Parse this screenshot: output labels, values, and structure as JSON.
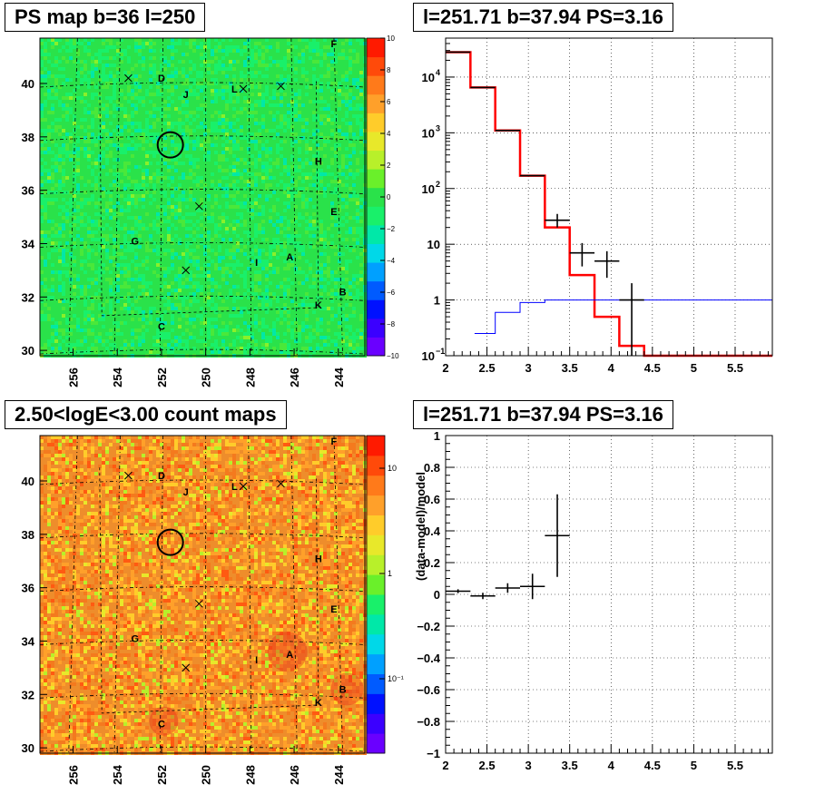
{
  "titles": {
    "map_top": "PS map b=36 l=250",
    "spec_top": "l=251.71 b=37.94 PS=3.16",
    "map_bottom": "2.50<logE<3.00 count maps",
    "spec_bottom": "l=251.71 b=37.94 PS=3.16"
  },
  "chart_data": [
    {
      "type": "heatmap",
      "title": "PS map b=36 l=250",
      "x_ticks": [
        "256",
        "254",
        "252",
        "250",
        "248",
        "246",
        "244"
      ],
      "y_ticks": [
        "30",
        "32",
        "34",
        "36",
        "38",
        "40"
      ],
      "xlim": [
        257.5,
        242.8
      ],
      "ylim": [
        29.8,
        41.7
      ],
      "colorbar": {
        "ticks": [
          "10",
          "8",
          "6",
          "4",
          "2",
          "0",
          "−2",
          "−4",
          "−6",
          "−8",
          "−10"
        ],
        "range": [
          -10,
          10
        ]
      },
      "dominant_value": 0,
      "colors": {
        "background": "#2ae24a"
      },
      "source_labels": [
        {
          "text": "F",
          "l": 244.2,
          "b": 41.5
        },
        {
          "text": "D",
          "l": 252.0,
          "b": 40.2
        },
        {
          "text": "L",
          "l": 248.7,
          "b": 39.8
        },
        {
          "text": "J",
          "l": 250.9,
          "b": 39.6
        },
        {
          "text": "H",
          "l": 244.9,
          "b": 37.1
        },
        {
          "text": "E",
          "l": 244.2,
          "b": 35.2
        },
        {
          "text": "G",
          "l": 253.2,
          "b": 34.1
        },
        {
          "text": "A",
          "l": 246.2,
          "b": 33.5
        },
        {
          "text": "I",
          "l": 247.7,
          "b": 33.3
        },
        {
          "text": "B",
          "l": 243.8,
          "b": 32.2
        },
        {
          "text": "K",
          "l": 244.9,
          "b": 31.7
        },
        {
          "text": "C",
          "l": 252.0,
          "b": 30.9
        }
      ],
      "crosses": [
        {
          "l": 253.5,
          "b": 40.2
        },
        {
          "l": 246.6,
          "b": 39.9
        },
        {
          "l": 248.3,
          "b": 39.8
        },
        {
          "l": 250.3,
          "b": 35.4
        },
        {
          "l": 250.9,
          "b": 33.0
        }
      ],
      "circle": {
        "l": 251.6,
        "b": 37.7
      }
    },
    {
      "type": "line",
      "title": "l=251.71 b=37.94 PS=3.16",
      "xlim": [
        2,
        5.95
      ],
      "ylim": [
        0.1,
        50000
      ],
      "ylog": true,
      "grid": true,
      "x_ticks": [
        "2",
        "2.5",
        "3",
        "3.5",
        "4",
        "4.5",
        "5",
        "5.5"
      ],
      "y_ticks": [
        {
          "value": 0.1,
          "base": "10",
          "exp": "−1"
        },
        {
          "value": 1,
          "text": "1"
        },
        {
          "value": 10,
          "text": "10"
        },
        {
          "value": 100,
          "base": "10",
          "exp": "2"
        },
        {
          "value": 1000,
          "base": "10",
          "exp": "3"
        },
        {
          "value": 10000,
          "base": "10",
          "exp": "4"
        }
      ],
      "series": [
        {
          "style": "step",
          "color": "#ff0000",
          "edges": [
            2,
            2.3,
            2.6,
            2.9,
            3.2,
            3.5,
            3.8,
            4.1,
            4.4,
            5.95
          ],
          "values": [
            28000,
            6500,
            1100,
            170,
            20,
            2.8,
            0.5,
            0.15,
            0.1
          ]
        },
        {
          "style": "step",
          "color": "#0000ff",
          "edges": [
            2.35,
            2.6,
            2.9,
            3.2,
            5.95
          ],
          "values": [
            0.25,
            0.6,
            0.9,
            1.0
          ]
        },
        {
          "style": "errorbar",
          "color": "#000000",
          "points": [
            {
              "x": 2.15,
              "y": 28000,
              "xerr": 0.15,
              "ylo": 28000,
              "yhi": 28000
            },
            {
              "x": 2.45,
              "y": 6500,
              "xerr": 0.15,
              "ylo": 6500,
              "yhi": 6500
            },
            {
              "x": 2.75,
              "y": 1100,
              "xerr": 0.15,
              "ylo": 1100,
              "yhi": 1100
            },
            {
              "x": 3.05,
              "y": 170,
              "xerr": 0.15,
              "ylo": 170,
              "yhi": 170
            },
            {
              "x": 3.35,
              "y": 27,
              "xerr": 0.15,
              "ylo": 20,
              "yhi": 35
            },
            {
              "x": 3.65,
              "y": 7,
              "xerr": 0.15,
              "ylo": 4,
              "yhi": 10.5
            },
            {
              "x": 3.95,
              "y": 5,
              "xerr": 0.15,
              "ylo": 2.5,
              "yhi": 7.5
            },
            {
              "x": 4.25,
              "y": 1.0,
              "xerr": 0.15,
              "ylo": 0.1,
              "yhi": 2.0
            }
          ]
        }
      ]
    },
    {
      "type": "heatmap",
      "title": "2.50<logE<3.00 count maps",
      "x_ticks": [
        "256",
        "254",
        "252",
        "250",
        "248",
        "246",
        "244"
      ],
      "y_ticks": [
        "30",
        "32",
        "34",
        "36",
        "38",
        "40"
      ],
      "xlim": [
        257.5,
        242.8
      ],
      "ylim": [
        29.8,
        41.7
      ],
      "colorbar": {
        "ticks": [
          "10",
          "1",
          "10⁻¹"
        ],
        "log": true
      },
      "colors": {
        "background": "#ee8d2b"
      },
      "source_labels": [
        {
          "text": "F",
          "l": 244.2,
          "b": 41.5
        },
        {
          "text": "D",
          "l": 252.0,
          "b": 40.2
        },
        {
          "text": "L",
          "l": 248.7,
          "b": 39.8
        },
        {
          "text": "J",
          "l": 250.9,
          "b": 39.6
        },
        {
          "text": "H",
          "l": 244.9,
          "b": 37.1
        },
        {
          "text": "E",
          "l": 244.2,
          "b": 35.2
        },
        {
          "text": "G",
          "l": 253.2,
          "b": 34.1
        },
        {
          "text": "A",
          "l": 246.2,
          "b": 33.5
        },
        {
          "text": "I",
          "l": 247.7,
          "b": 33.3
        },
        {
          "text": "B",
          "l": 243.8,
          "b": 32.2
        },
        {
          "text": "K",
          "l": 244.9,
          "b": 31.7
        },
        {
          "text": "C",
          "l": 252.0,
          "b": 30.9
        }
      ],
      "crosses": [
        {
          "l": 253.5,
          "b": 40.2
        },
        {
          "l": 246.6,
          "b": 39.9
        },
        {
          "l": 248.3,
          "b": 39.8
        },
        {
          "l": 250.3,
          "b": 35.4
        },
        {
          "l": 250.9,
          "b": 33.0
        }
      ],
      "circle": {
        "l": 251.6,
        "b": 37.7
      }
    },
    {
      "type": "scatter",
      "title": "l=251.71 b=37.94 PS=3.16",
      "ylabel": "(data-model)/model",
      "xlim": [
        2,
        5.95
      ],
      "ylim": [
        -1,
        1
      ],
      "grid": true,
      "x_ticks": [
        "2",
        "2.5",
        "3",
        "3.5",
        "4",
        "4.5",
        "5",
        "5.5"
      ],
      "y_ticks": [
        "−1",
        "−0.8",
        "−0.6",
        "−0.4",
        "−0.2",
        "0",
        "0.2",
        "0.4",
        "0.6",
        "0.8",
        "1"
      ],
      "points": [
        {
          "x": 2.15,
          "y": 0.02,
          "xerr": 0.15,
          "yerr": 0.012
        },
        {
          "x": 2.45,
          "y": -0.01,
          "xerr": 0.15,
          "yerr": 0.02
        },
        {
          "x": 2.75,
          "y": 0.04,
          "xerr": 0.15,
          "yerr": 0.03
        },
        {
          "x": 3.05,
          "y": 0.05,
          "xerr": 0.15,
          "yerr": 0.08
        },
        {
          "x": 3.35,
          "y": 0.37,
          "xerr": 0.15,
          "yerr": 0.26
        }
      ]
    }
  ]
}
